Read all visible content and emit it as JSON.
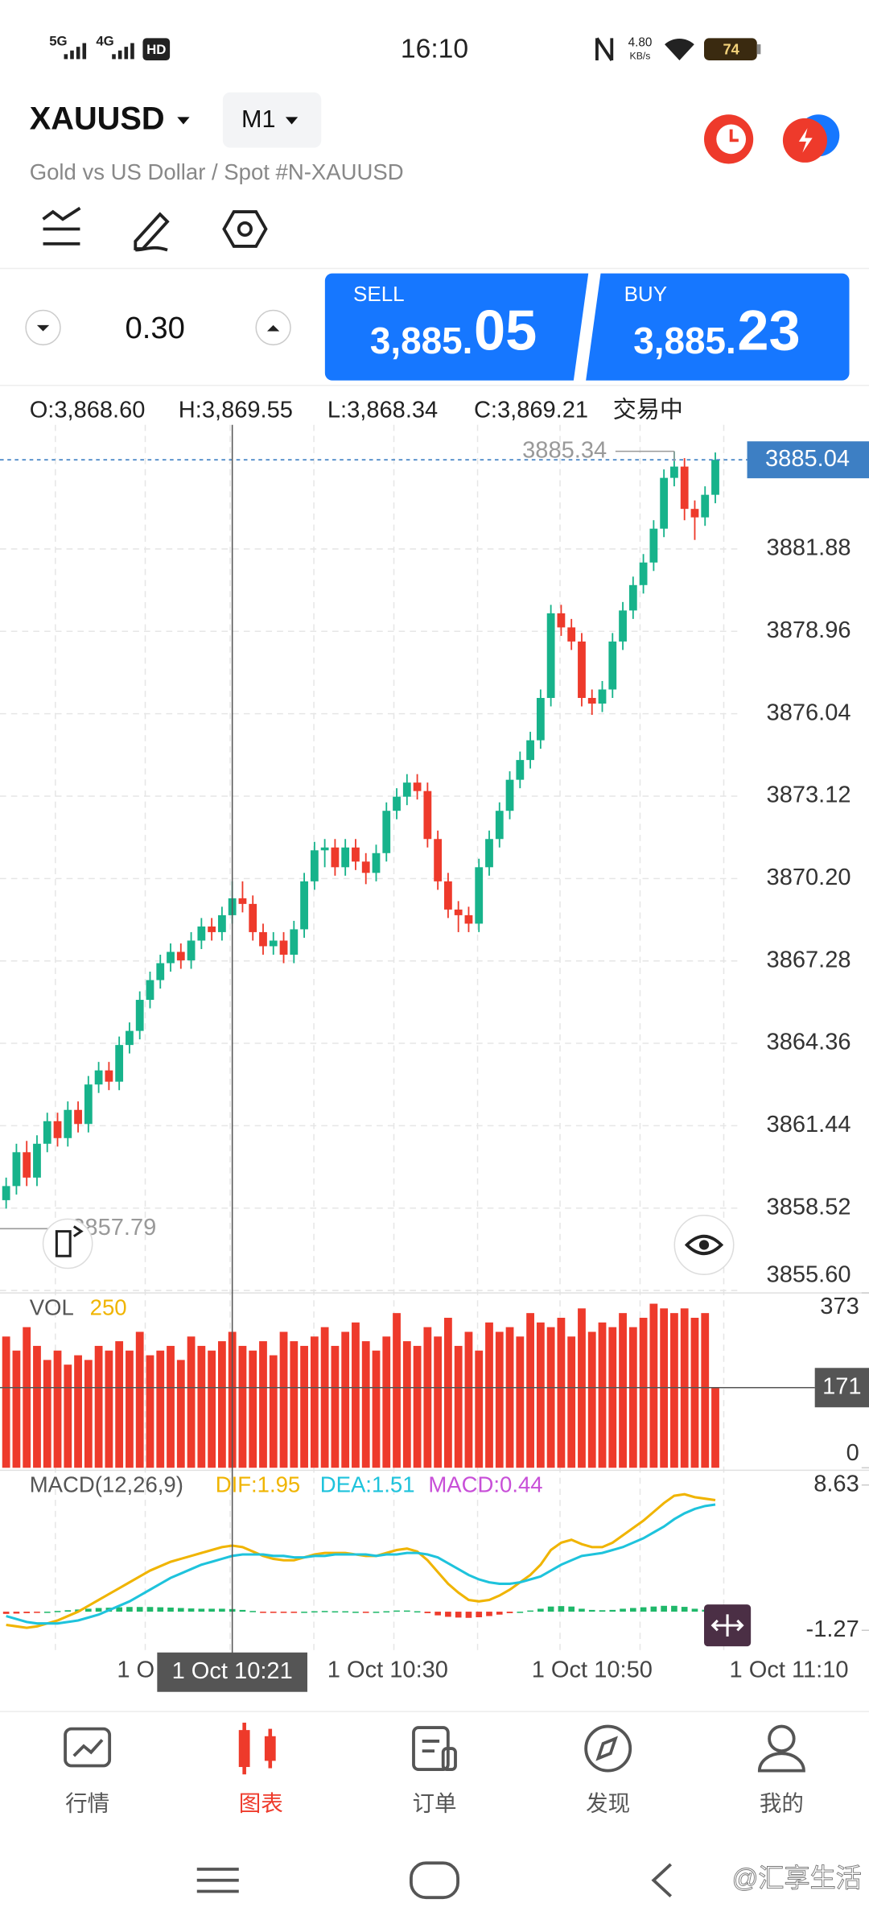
{
  "status_bar": {
    "network_1": "5G",
    "network_2": "4G",
    "hd": "HD",
    "time": "16:10",
    "speed": "4.80",
    "speed_unit": "KB/s",
    "battery": "74"
  },
  "header": {
    "symbol": "XAUUSD",
    "timeframe": "M1",
    "description": "Gold vs US Dollar / Spot #N-XAUUSD"
  },
  "trade": {
    "volume": "0.30",
    "sell_label": "SELL",
    "sell_price_main": "3,885.",
    "sell_price_big": "05",
    "buy_label": "BUY",
    "buy_price_main": "3,885.",
    "buy_price_big": "23"
  },
  "ohlc": [
    "O:3,868.60",
    "H:3,869.55",
    "L:3,868.34",
    "C:3,869.21",
    "交易中"
  ],
  "chart_data": {
    "type": "candlestick",
    "colors": {
      "up": "#17b38b",
      "down": "#ee3a2b"
    },
    "ylim": [
      3855.6,
      3886.28
    ],
    "yticks": [
      {
        "value": 3855.6,
        "label": "3855.60"
      },
      3858.52,
      3861.44,
      3864.36,
      3867.28,
      {
        "value": 3870.2,
        "label": "3870.20"
      },
      3873.12,
      3876.04,
      3878.96,
      3881.88
    ],
    "current_price": 3885.04,
    "high_label": 3885.34,
    "low_label": 3857.79,
    "candles": [
      [
        3858.8,
        3859.6,
        3858.5,
        3859.3
      ],
      [
        3859.3,
        3860.8,
        3859.0,
        3860.5
      ],
      [
        3860.5,
        3860.9,
        3859.3,
        3859.6
      ],
      [
        3859.6,
        3861.1,
        3859.3,
        3860.8
      ],
      [
        3860.8,
        3861.9,
        3860.5,
        3861.6
      ],
      [
        3861.6,
        3861.9,
        3860.7,
        3861.0
      ],
      [
        3861.0,
        3862.3,
        3860.7,
        3862.0
      ],
      [
        3862.0,
        3862.3,
        3861.2,
        3861.5
      ],
      [
        3861.5,
        3863.2,
        3861.2,
        3862.9
      ],
      [
        3862.9,
        3863.7,
        3862.6,
        3863.4
      ],
      [
        3863.4,
        3863.7,
        3862.7,
        3863.0
      ],
      [
        3863.0,
        3864.6,
        3862.7,
        3864.3
      ],
      [
        3864.3,
        3865.1,
        3864.0,
        3864.8
      ],
      [
        3864.8,
        3866.2,
        3864.5,
        3865.9
      ],
      [
        3865.9,
        3866.9,
        3865.6,
        3866.6
      ],
      [
        3866.6,
        3867.5,
        3866.3,
        3867.2
      ],
      [
        3867.2,
        3867.9,
        3866.9,
        3867.6
      ],
      [
        3867.6,
        3867.9,
        3867.0,
        3867.3
      ],
      [
        3867.3,
        3868.3,
        3867.0,
        3868.0
      ],
      [
        3868.0,
        3868.8,
        3867.7,
        3868.5
      ],
      [
        3868.5,
        3868.8,
        3868.0,
        3868.3
      ],
      [
        3868.3,
        3869.2,
        3868.0,
        3868.9
      ],
      [
        3868.9,
        3870.1,
        3868.6,
        3869.5
      ],
      [
        3869.5,
        3870.1,
        3869.0,
        3869.3
      ],
      [
        3869.3,
        3869.6,
        3868.0,
        3868.3
      ],
      [
        3868.3,
        3868.6,
        3867.5,
        3867.8
      ],
      [
        3867.8,
        3868.3,
        3867.5,
        3868.0
      ],
      [
        3868.0,
        3868.3,
        3867.2,
        3867.5
      ],
      [
        3867.5,
        3868.7,
        3867.2,
        3868.4
      ],
      [
        3868.4,
        3870.4,
        3868.1,
        3870.1
      ],
      [
        3870.1,
        3871.5,
        3869.8,
        3871.2
      ],
      [
        3871.2,
        3871.6,
        3870.6,
        3871.3
      ],
      [
        3871.3,
        3871.6,
        3870.3,
        3870.6
      ],
      [
        3870.6,
        3871.6,
        3870.3,
        3871.3
      ],
      [
        3871.3,
        3871.6,
        3870.5,
        3870.8
      ],
      [
        3870.8,
        3871.1,
        3870.0,
        3870.4
      ],
      [
        3870.4,
        3871.4,
        3870.1,
        3871.1
      ],
      [
        3871.1,
        3872.9,
        3870.8,
        3872.6
      ],
      [
        3872.6,
        3873.4,
        3872.3,
        3873.1
      ],
      [
        3873.1,
        3873.9,
        3872.8,
        3873.6
      ],
      [
        3873.6,
        3873.9,
        3873.0,
        3873.3
      ],
      [
        3873.3,
        3873.6,
        3871.3,
        3871.6
      ],
      [
        3871.6,
        3871.9,
        3869.8,
        3870.1
      ],
      [
        3870.1,
        3870.4,
        3868.8,
        3869.1
      ],
      [
        3869.1,
        3869.4,
        3868.3,
        3868.9
      ],
      [
        3868.9,
        3869.2,
        3868.3,
        3868.6
      ],
      [
        3868.6,
        3870.9,
        3868.3,
        3870.6
      ],
      [
        3870.6,
        3871.9,
        3870.3,
        3871.6
      ],
      [
        3871.6,
        3872.9,
        3871.3,
        3872.6
      ],
      [
        3872.6,
        3874.0,
        3872.3,
        3873.7
      ],
      [
        3873.7,
        3874.7,
        3873.4,
        3874.4
      ],
      [
        3874.4,
        3875.4,
        3874.1,
        3875.1
      ],
      [
        3875.1,
        3876.9,
        3874.8,
        3876.6
      ],
      [
        3876.6,
        3879.9,
        3876.3,
        3879.6
      ],
      [
        3879.6,
        3879.9,
        3878.8,
        3879.1
      ],
      [
        3879.1,
        3879.4,
        3878.3,
        3878.6
      ],
      [
        3878.6,
        3878.9,
        3876.3,
        3876.6
      ],
      [
        3876.6,
        3876.9,
        3876.0,
        3876.4
      ],
      [
        3876.4,
        3877.2,
        3876.1,
        3876.9
      ],
      [
        3876.9,
        3878.9,
        3876.6,
        3878.6
      ],
      [
        3878.6,
        3880.0,
        3878.3,
        3879.7
      ],
      [
        3879.7,
        3880.9,
        3879.4,
        3880.6
      ],
      [
        3880.6,
        3881.7,
        3880.3,
        3881.4
      ],
      [
        3881.4,
        3882.9,
        3881.1,
        3882.6
      ],
      [
        3882.6,
        3884.7,
        3882.3,
        3884.4
      ],
      [
        3884.4,
        3885.34,
        3884.1,
        3884.8
      ],
      [
        3884.8,
        3885.1,
        3882.9,
        3883.3
      ],
      [
        3883.3,
        3883.6,
        3882.2,
        3883.0
      ],
      [
        3883.0,
        3884.1,
        3882.7,
        3883.8
      ],
      [
        3883.8,
        3885.3,
        3883.5,
        3885.04
      ]
    ],
    "x_labels": [
      "1 O",
      "1 Oct 10:30",
      "1 Oct 10:50",
      "1 Oct 11:10"
    ],
    "crosshair_label": "1 Oct 10:21",
    "volume": {
      "label": "VOL",
      "current": 250,
      "color": "#ee3a2b",
      "ylim": [
        0,
        373
      ],
      "yticks": [
        0,
        373
      ],
      "crosshair_value": 171,
      "values": [
        280,
        250,
        300,
        260,
        230,
        250,
        220,
        240,
        230,
        260,
        250,
        270,
        250,
        290,
        240,
        250,
        260,
        230,
        280,
        260,
        250,
        270,
        290,
        260,
        250,
        270,
        240,
        290,
        270,
        260,
        280,
        300,
        260,
        290,
        310,
        270,
        250,
        280,
        330,
        270,
        260,
        300,
        280,
        320,
        260,
        290,
        250,
        310,
        290,
        300,
        280,
        330,
        310,
        300,
        320,
        280,
        340,
        290,
        310,
        300,
        330,
        300,
        320,
        350,
        340,
        330,
        340,
        320,
        330,
        171
      ]
    },
    "macd": {
      "label": "MACD(12,26,9)",
      "dif_label": "DIF:1.95",
      "dea_label": "DEA:1.51",
      "macd_label": "MACD:0.44",
      "ylim": [
        -1.27,
        8.63
      ],
      "yticks": [
        -1.27,
        8.63
      ],
      "dif": {
        "color": "#f0b400",
        "values": [
          -0.9,
          -1.0,
          -1.1,
          -1.0,
          -0.8,
          -0.6,
          -0.3,
          0.0,
          0.4,
          0.8,
          1.2,
          1.6,
          2.0,
          2.4,
          2.8,
          3.1,
          3.4,
          3.6,
          3.8,
          4.0,
          4.2,
          4.4,
          4.5,
          4.4,
          4.1,
          3.8,
          3.6,
          3.5,
          3.5,
          3.7,
          3.9,
          4.0,
          4.0,
          4.0,
          3.9,
          3.8,
          3.8,
          4.0,
          4.2,
          4.3,
          4.1,
          3.5,
          2.7,
          1.9,
          1.3,
          0.8,
          0.7,
          0.8,
          1.1,
          1.5,
          2.0,
          2.5,
          3.2,
          4.2,
          4.7,
          4.9,
          4.6,
          4.4,
          4.4,
          4.7,
          5.2,
          5.7,
          6.2,
          6.8,
          7.4,
          7.9,
          8.0,
          7.8,
          7.7,
          7.6
        ]
      },
      "dea": {
        "color": "#1ec3dc",
        "values": [
          -0.3,
          -0.5,
          -0.7,
          -0.8,
          -0.8,
          -0.8,
          -0.7,
          -0.6,
          -0.4,
          -0.2,
          0.1,
          0.4,
          0.7,
          1.1,
          1.5,
          1.9,
          2.3,
          2.6,
          2.9,
          3.2,
          3.4,
          3.6,
          3.8,
          3.9,
          3.9,
          3.9,
          3.8,
          3.8,
          3.7,
          3.7,
          3.8,
          3.8,
          3.9,
          3.9,
          3.9,
          3.9,
          3.8,
          3.9,
          3.9,
          4.0,
          4.0,
          3.9,
          3.7,
          3.3,
          2.9,
          2.5,
          2.2,
          2.0,
          1.9,
          1.9,
          2.0,
          2.2,
          2.4,
          2.8,
          3.2,
          3.5,
          3.8,
          3.9,
          4.0,
          4.2,
          4.4,
          4.7,
          5.0,
          5.4,
          5.8,
          6.3,
          6.7,
          7.0,
          7.2,
          7.3
        ]
      },
      "hist": {
        "up_color": "#1fb86a",
        "down_color": "#ee3a2b",
        "values": [
          -0.15,
          -0.13,
          -0.1,
          -0.05,
          0,
          0.05,
          0.1,
          0.15,
          0.2,
          0.25,
          0.27,
          0.3,
          0.32,
          0.32,
          0.32,
          0.3,
          0.28,
          0.25,
          0.22,
          0.2,
          0.2,
          0.2,
          0.18,
          0.12,
          0.05,
          -0.03,
          -0.05,
          -0.08,
          -0.05,
          0,
          0.03,
          0.05,
          0.03,
          0.03,
          0,
          -0.03,
          0,
          0.03,
          0.08,
          0.08,
          0.03,
          -0.1,
          -0.25,
          -0.35,
          -0.4,
          -0.42,
          -0.38,
          -0.3,
          -0.2,
          -0.1,
          0,
          0.08,
          0.2,
          0.35,
          0.38,
          0.35,
          0.2,
          0.12,
          0.1,
          0.12,
          0.2,
          0.25,
          0.3,
          0.35,
          0.4,
          0.4,
          0.33,
          0.2,
          0.13,
          0.08
        ]
      }
    }
  },
  "nav": [
    "行情",
    "图表",
    "订单",
    "发现",
    "我的"
  ],
  "watermark": "@汇享生活"
}
